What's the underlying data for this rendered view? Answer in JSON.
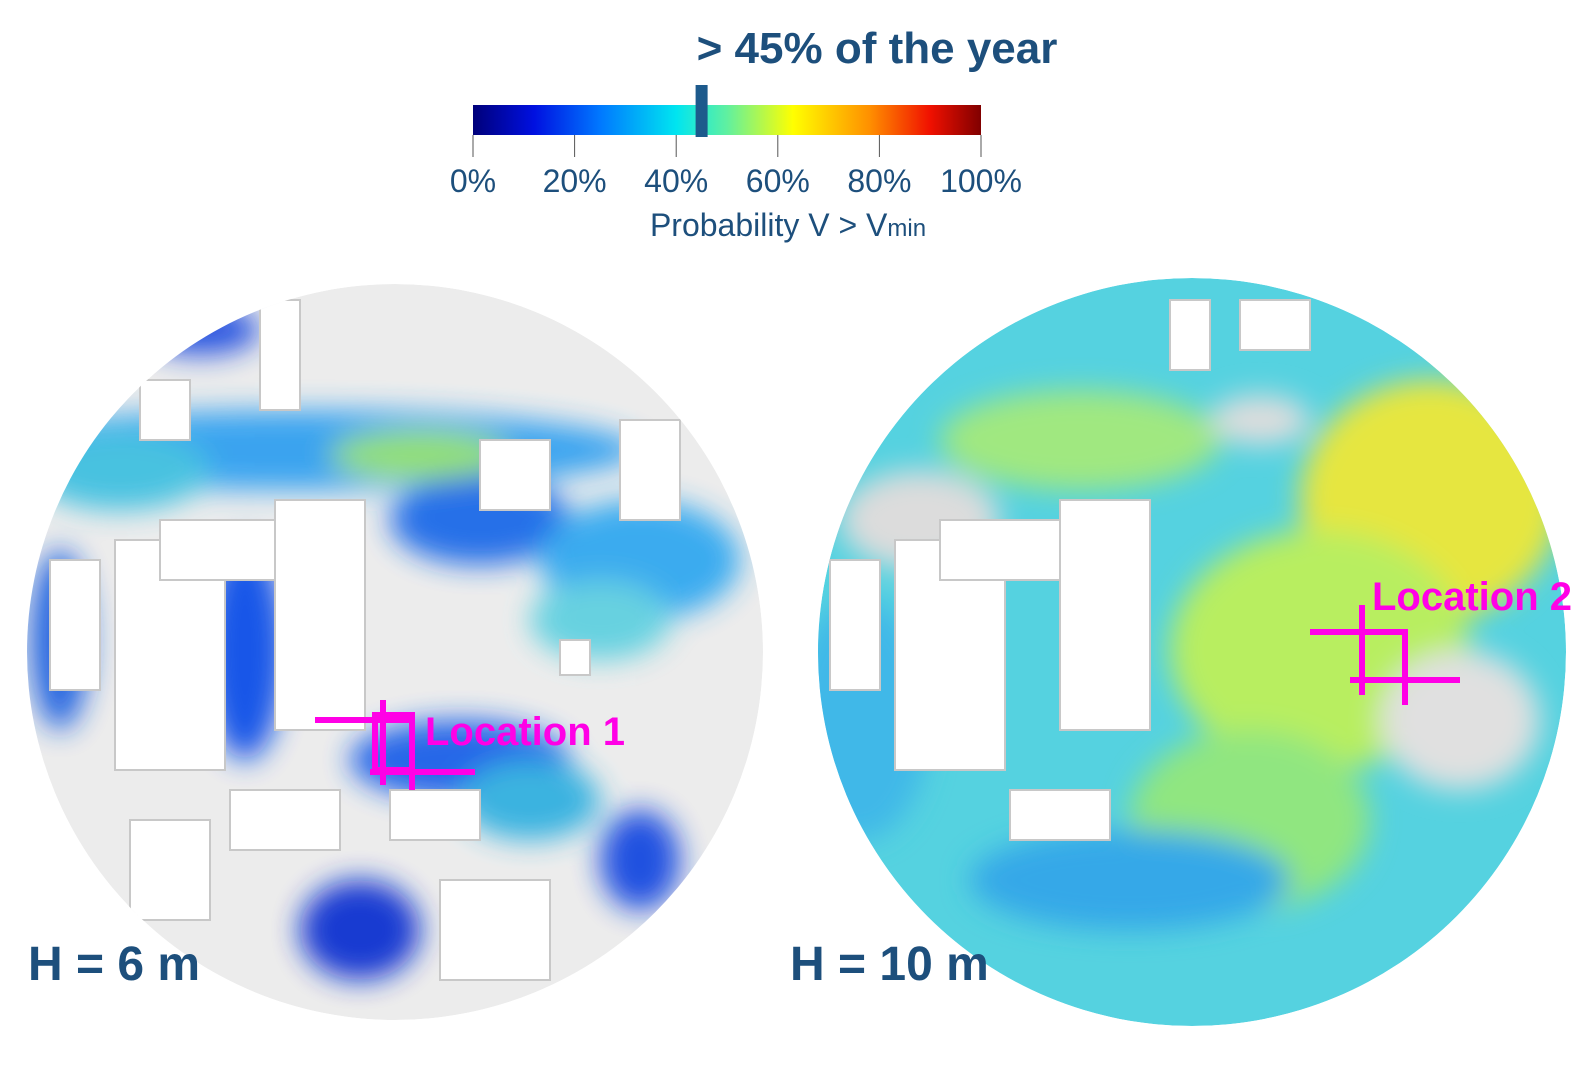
{
  "colorbar": {
    "title": "> 45% of the year",
    "lim": [
      0,
      100
    ],
    "threshold": 45,
    "ticks": [
      {
        "value": 0,
        "label": "0%"
      },
      {
        "value": 20,
        "label": "20%"
      },
      {
        "value": 40,
        "label": "40%"
      },
      {
        "value": 60,
        "label": "60%"
      },
      {
        "value": 80,
        "label": "80%"
      },
      {
        "value": 100,
        "label": "100%"
      }
    ],
    "label": "Probability  V > V",
    "label_sub": "min"
  },
  "maps": [
    {
      "height_label": "H = 6 m",
      "location_label": "Location 1"
    },
    {
      "height_label": "H = 10 m",
      "location_label": "Location 2"
    }
  ]
}
